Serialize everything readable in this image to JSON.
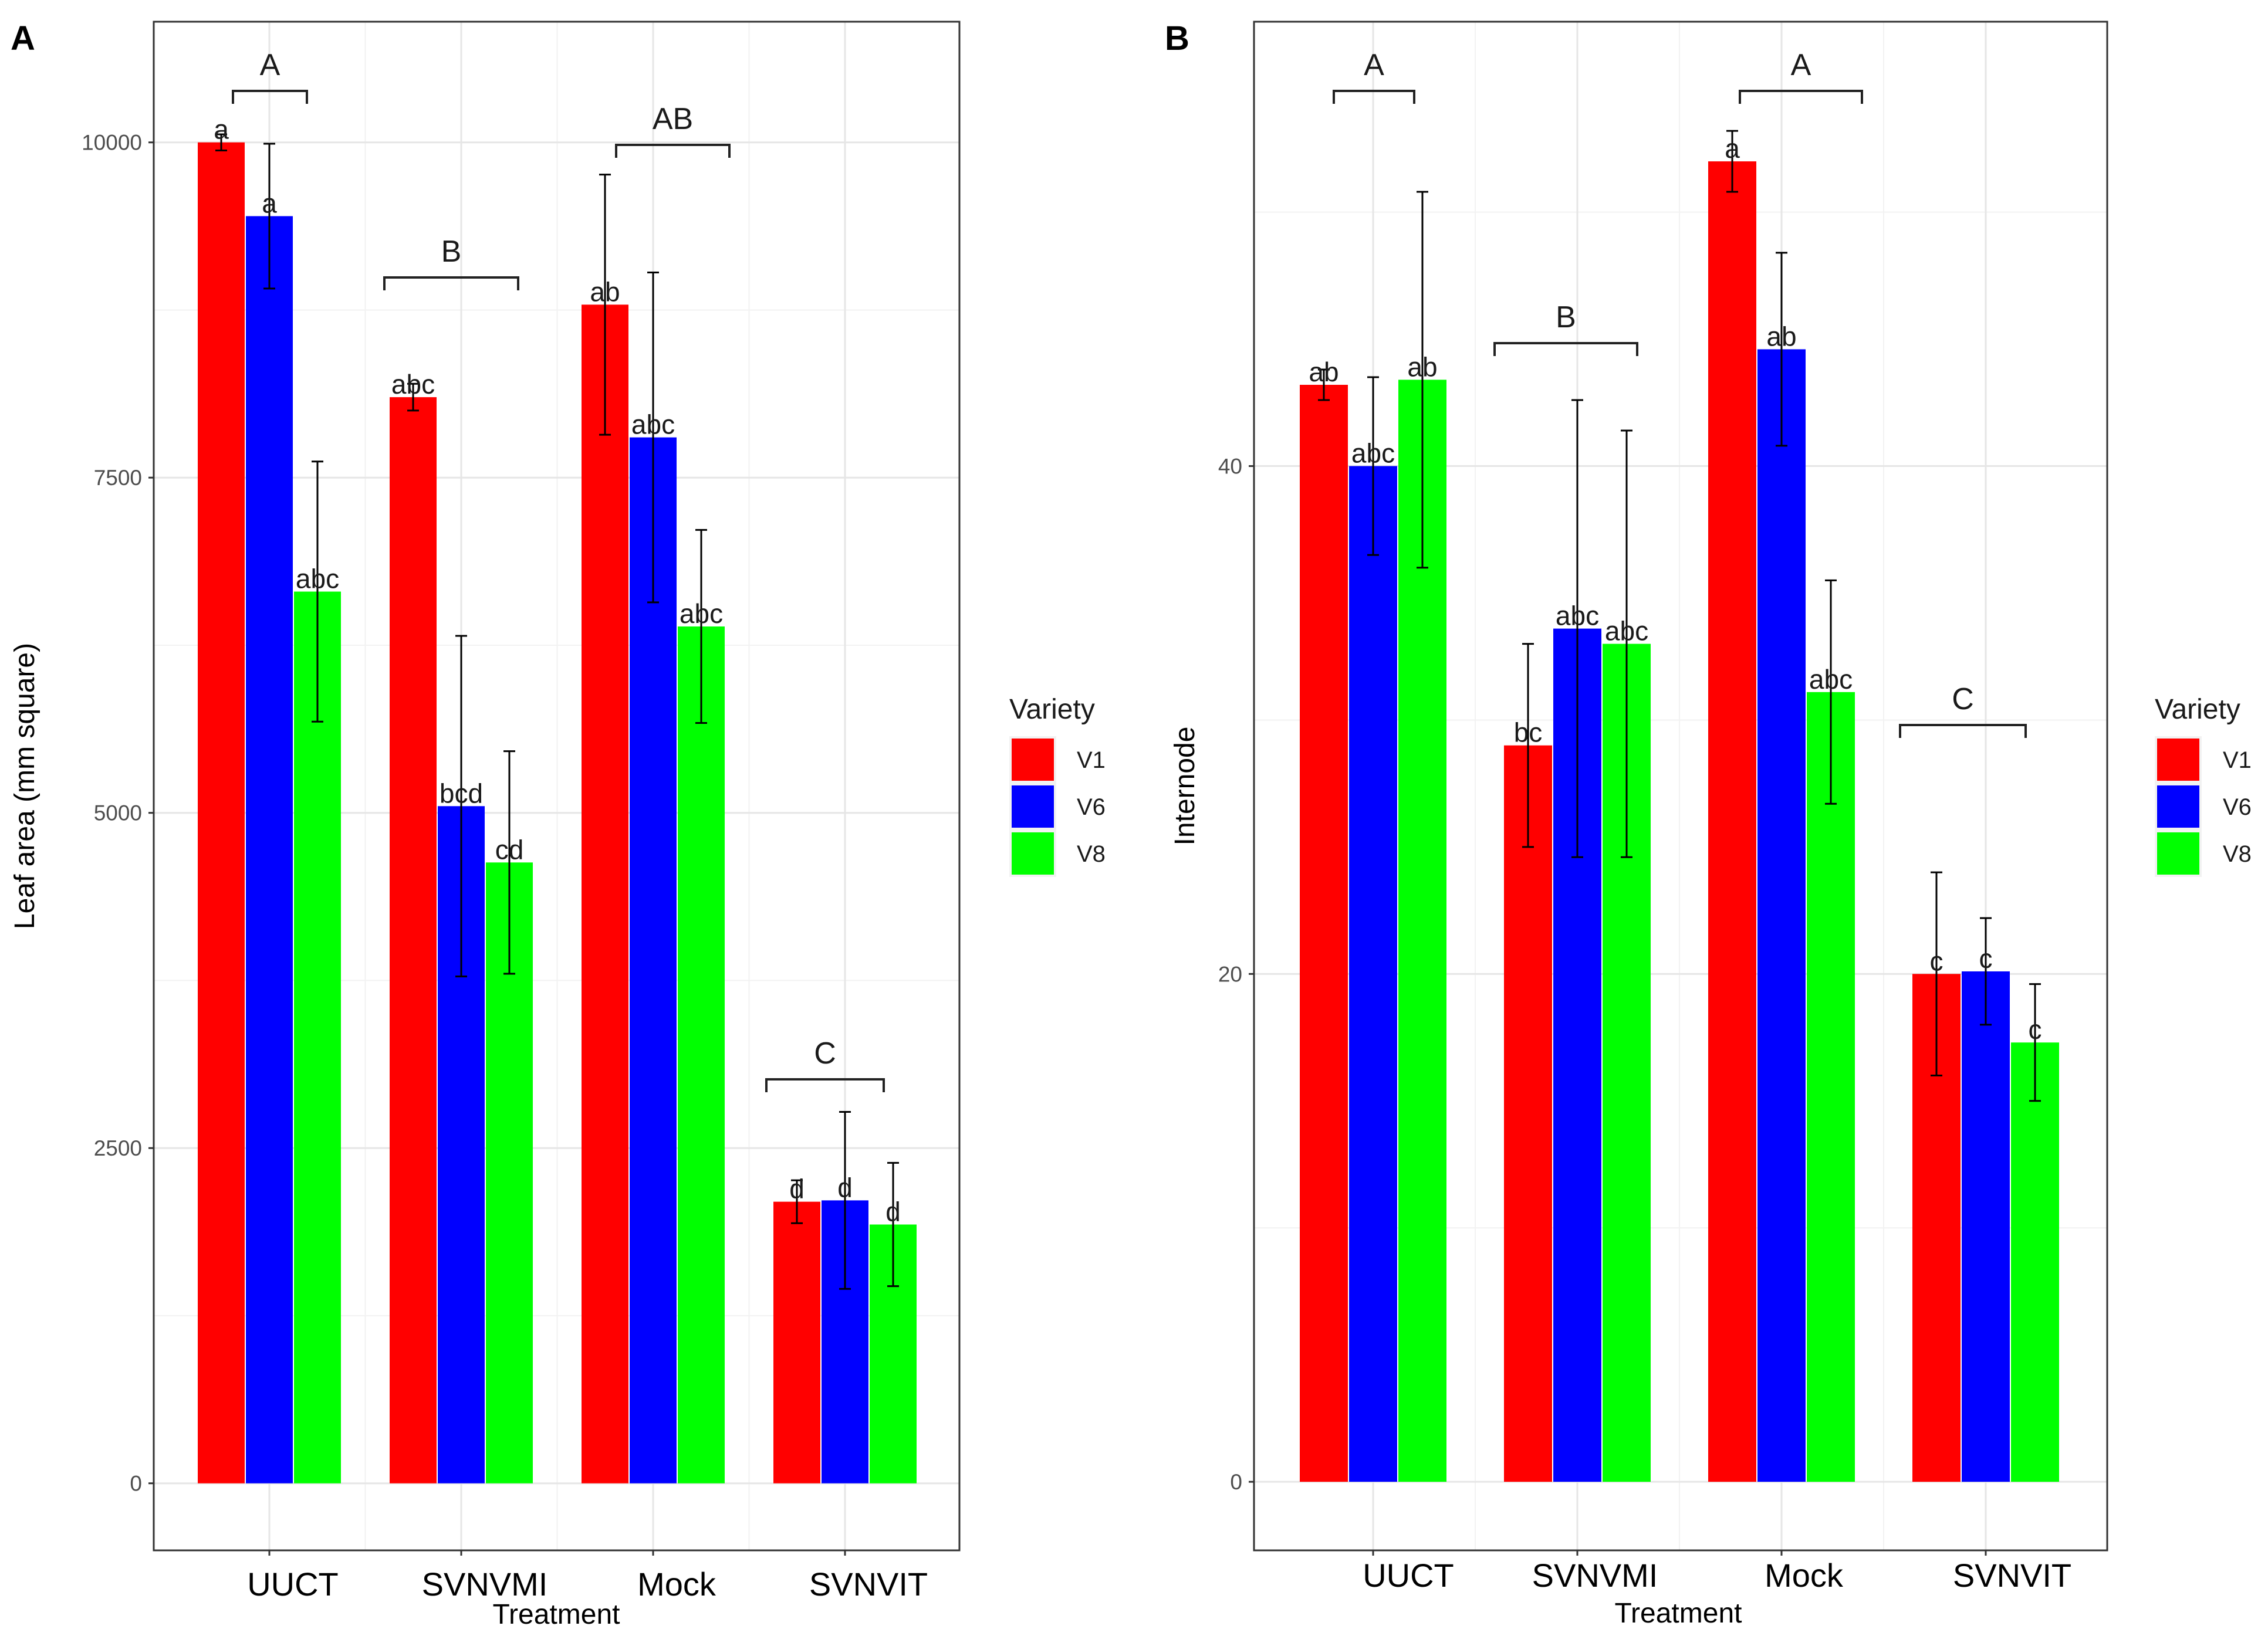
{
  "chart_data": [
    {
      "panel": "A",
      "type": "bar",
      "xlabel": "Treatment",
      "ylabel": "Leaf area (mm square)",
      "ylim": [
        -500,
        10900
      ],
      "yticks": [
        0,
        2500,
        5000,
        7500,
        10000
      ],
      "categories": [
        "UUCT",
        "SVNVMI",
        "Mock",
        "SVNVIT"
      ],
      "series": [
        {
          "name": "V1",
          "color": "#ff0000",
          "values": [
            10000,
            8100,
            8790,
            2100
          ],
          "errors": [
            60,
            100,
            970,
            160
          ],
          "labels": [
            "a",
            "abc",
            "ab",
            "d"
          ]
        },
        {
          "name": "V6",
          "color": "#0000ff",
          "values": [
            9450,
            5050,
            7800,
            2110
          ],
          "errors": [
            540,
            1270,
            1230,
            660
          ],
          "labels": [
            "a",
            "bcd",
            "abc",
            "d"
          ]
        },
        {
          "name": "V8",
          "color": "#00ff00",
          "values": [
            6650,
            4630,
            6390,
            1930
          ],
          "errors": [
            970,
            830,
            720,
            460
          ],
          "labels": [
            "abc",
            "cd",
            "abc",
            "d"
          ]
        }
      ],
      "group_letters": [
        "A",
        "B",
        "AB",
        "C"
      ],
      "legend_title": "Variety"
    },
    {
      "panel": "B",
      "type": "bar",
      "xlabel": "Treatment",
      "ylabel": "Internode",
      "ylim": [
        -2.7,
        57.5
      ],
      "yticks": [
        0,
        20,
        40
      ],
      "categories": [
        "UUCT",
        "SVNVMI",
        "Mock",
        "SVNVIT"
      ],
      "series": [
        {
          "name": "V1",
          "color": "#ff0000",
          "values": [
            43.2,
            29.0,
            52.0,
            20.0
          ],
          "errors": [
            0.6,
            4.0,
            1.2,
            4.0
          ],
          "labels": [
            "ab",
            "bc",
            "a",
            "c"
          ]
        },
        {
          "name": "V6",
          "color": "#0000ff",
          "values": [
            40.0,
            33.6,
            44.6,
            20.1
          ],
          "errors": [
            3.5,
            9.0,
            3.8,
            2.1
          ],
          "labels": [
            "abc",
            "abc",
            "ab",
            "c"
          ]
        },
        {
          "name": "V8",
          "color": "#00ff00",
          "values": [
            43.4,
            33.0,
            31.1,
            17.3
          ],
          "errors": [
            7.4,
            8.4,
            4.4,
            2.3
          ],
          "labels": [
            "ab",
            "abc",
            "abc",
            "c"
          ]
        }
      ],
      "group_letters": [
        "A",
        "B",
        "A",
        "C"
      ],
      "legend_title": "Variety"
    }
  ]
}
